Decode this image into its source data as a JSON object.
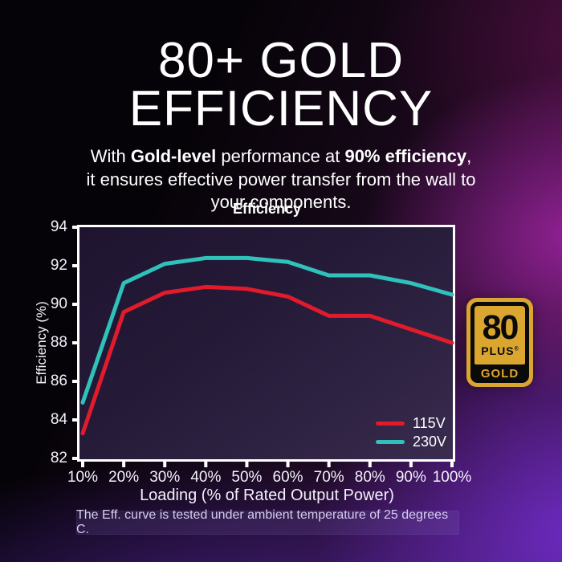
{
  "header": {
    "title_line1": "80+ GOLD",
    "title_line2": "EFFICIENCY",
    "subtitle_lines": [
      [
        {
          "text": "With ",
          "bold": false
        },
        {
          "text": "Gold-level",
          "bold": true
        },
        {
          "text": " performance at ",
          "bold": false
        },
        {
          "text": "90% efficiency",
          "bold": true
        },
        {
          "text": ",",
          "bold": false
        }
      ],
      [
        {
          "text": "it ensures effective power transfer from the wall to",
          "bold": false
        }
      ],
      [
        {
          "text": "your components.",
          "bold": false
        }
      ]
    ]
  },
  "chart_data": {
    "type": "line",
    "title": "Efficiency",
    "xlabel": "Loading (% of Rated Output Power)",
    "ylabel": "Efficiency (%)",
    "x": [
      10,
      20,
      30,
      40,
      50,
      60,
      70,
      80,
      90,
      100
    ],
    "x_tick_labels": [
      "10%",
      "20%",
      "30%",
      "40%",
      "50%",
      "60%",
      "70%",
      "80%",
      "90%",
      "100%"
    ],
    "ylim": [
      82,
      94
    ],
    "y_ticks": [
      94,
      92,
      90,
      88,
      86,
      84,
      82
    ],
    "grid": false,
    "legend_position": "inside lower right",
    "series": [
      {
        "name": "115V",
        "color": "#e11b2c",
        "values": [
          83.3,
          89.6,
          90.6,
          90.9,
          90.8,
          90.4,
          89.4,
          89.4,
          88.7,
          88.0
        ]
      },
      {
        "name": "230V",
        "color": "#2fc2bb",
        "values": [
          84.9,
          91.1,
          92.1,
          92.4,
          92.4,
          92.2,
          91.5,
          91.5,
          91.1,
          90.5
        ]
      }
    ]
  },
  "badge": {
    "number": "80",
    "plus": "PLUS",
    "reg": "®",
    "level": "GOLD",
    "gold_color": "#dba62f"
  },
  "footnote": {
    "text": "The Eff. curve is tested under ambient temperature of 25 degrees C."
  }
}
